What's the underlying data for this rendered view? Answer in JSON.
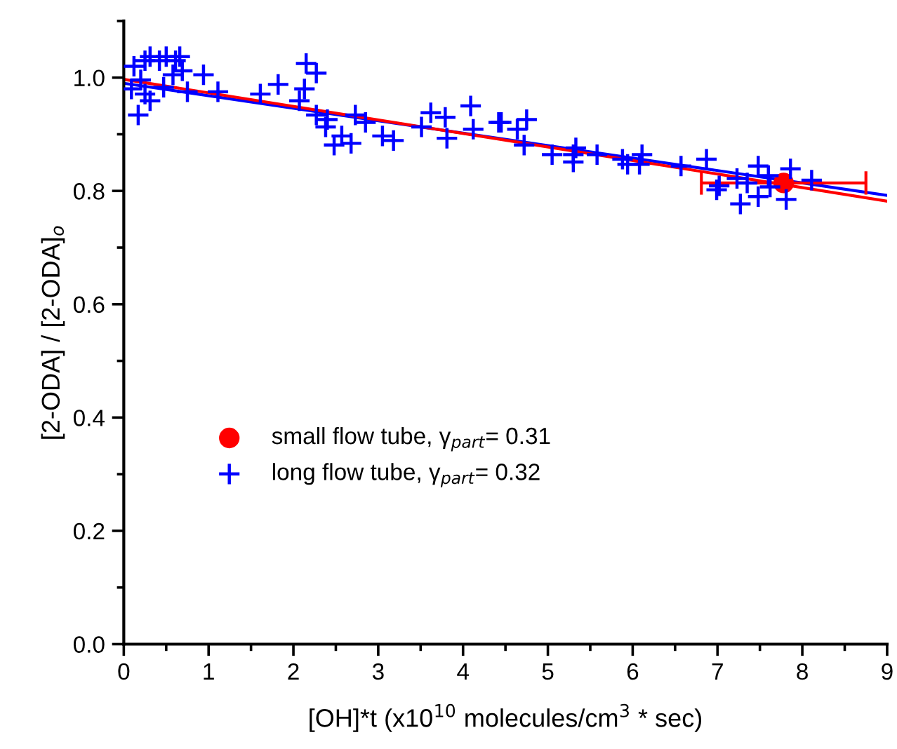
{
  "chart_data": {
    "type": "scatter",
    "xlabel": "[OH]*t (x10$^{10}$ molecules/cm$^{3}$ * sec)",
    "ylabel": "[2-ODA] / [2-ODA]$_{o}$",
    "xlim": [
      0,
      9
    ],
    "xticks": [
      0,
      1,
      2,
      3,
      4,
      5,
      6,
      7,
      8,
      9
    ],
    "ylim": [
      0,
      1.1
    ],
    "yticks": [
      {
        "value": 0,
        "label": "0.0"
      },
      {
        "value": 0.2,
        "label": "0.2"
      },
      {
        "value": 0.4,
        "label": "0.4"
      },
      {
        "value": 0.6,
        "label": "0.6"
      },
      {
        "value": 0.8,
        "label": "0.8"
      },
      {
        "value": 1.0,
        "label": "1.0"
      }
    ],
    "grid": false,
    "legend": "left",
    "series": [
      {
        "name": "small flow tube, γ$_{part}$= 0.31",
        "marker": "circle",
        "color": "#ff0000",
        "x": [
          7.78
        ],
        "values": [
          0.814
        ],
        "xerrors": [
          0.97
        ]
      },
      {
        "name": "long flow tube, γ$_{part}$= 0.32",
        "marker": "cross",
        "color": "#0000ff",
        "x": [
          0.12,
          0.09,
          0.17,
          0.25,
          0.31,
          0.42,
          0.5,
          0.61,
          0.66,
          0.69,
          0.25,
          0.31,
          0.2,
          0.47,
          0.58,
          0.75,
          0.94,
          1.11,
          1.61,
          1.82,
          2.13,
          2.15,
          2.27,
          2.07,
          2.27,
          2.4,
          2.38,
          2.57,
          2.48,
          2.68,
          2.73,
          2.85,
          3.05,
          3.18,
          3.51,
          3.62,
          3.79,
          3.81,
          4.09,
          4.12,
          4.42,
          4.45,
          4.64,
          4.75,
          4.72,
          5.05,
          5.3,
          5.3,
          5.33,
          5.58,
          5.88,
          5.94,
          6.08,
          6.11,
          6.57,
          6.87,
          7.02,
          6.99,
          7.27,
          7.23,
          7.35,
          7.48,
          7.48,
          7.62,
          7.81,
          7.86,
          8.11,
          7.6
        ],
        "values": [
          1.02,
          0.98,
          0.934,
          1.03,
          1.037,
          1.03,
          1.037,
          1.03,
          1.037,
          1.012,
          0.971,
          0.959,
          0.996,
          0.983,
          1.005,
          0.975,
          1.005,
          0.975,
          0.971,
          0.988,
          0.98,
          1.025,
          1.008,
          0.959,
          0.934,
          0.926,
          0.913,
          0.897,
          0.881,
          0.884,
          0.934,
          0.921,
          0.897,
          0.889,
          0.913,
          0.938,
          0.93,
          0.893,
          0.95,
          0.909,
          0.921,
          0.921,
          0.909,
          0.926,
          0.881,
          0.864,
          0.864,
          0.851,
          0.876,
          0.864,
          0.856,
          0.847,
          0.847,
          0.864,
          0.844,
          0.856,
          0.809,
          0.802,
          0.777,
          0.822,
          0.814,
          0.844,
          0.79,
          0.807,
          0.785,
          0.839,
          0.819,
          0.827
        ]
      },
      {
        "type": "line",
        "line_style": "solid",
        "color": "#0000ff",
        "x": [
          0,
          9
        ],
        "values": [
          0.99,
          0.792
        ]
      },
      {
        "type": "line",
        "line_style": "solid",
        "color": "#ff0000",
        "x": [
          0,
          9
        ],
        "values": [
          0.997,
          0.782
        ]
      }
    ]
  }
}
